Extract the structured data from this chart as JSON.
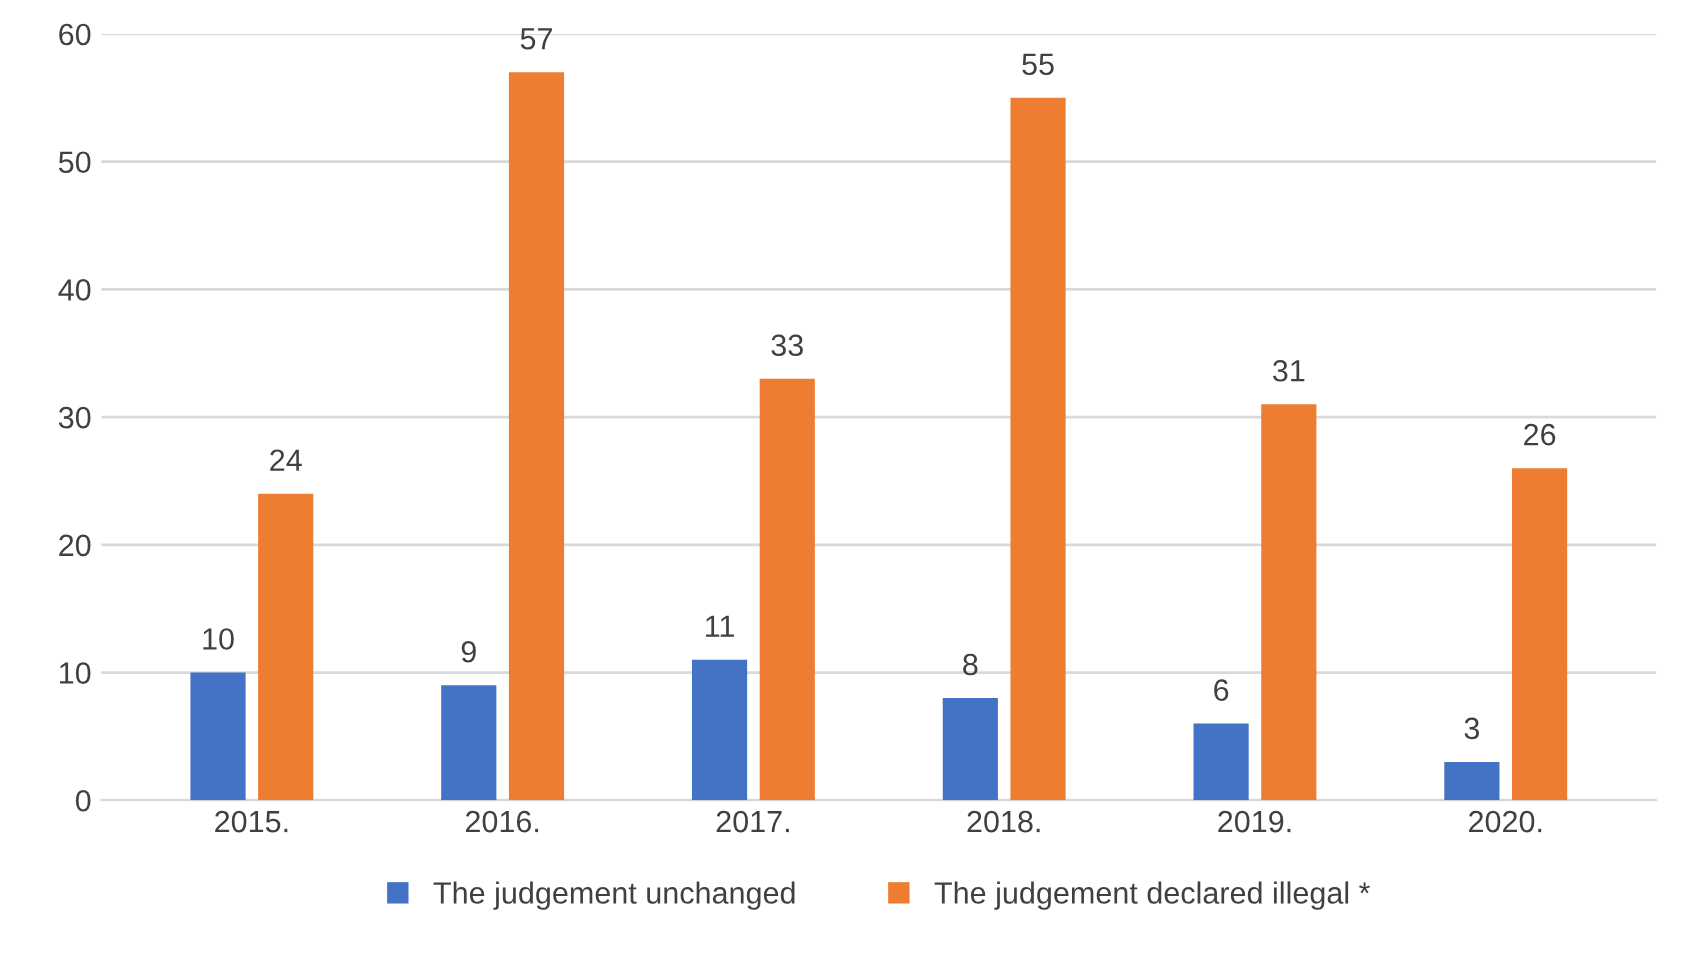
{
  "chart_data": {
    "type": "bar",
    "categories": [
      "2015.",
      "2016.",
      "2017.",
      "2018.",
      "2019.",
      "2020."
    ],
    "series": [
      {
        "name": "The judgement unchanged",
        "color": "#4472c4",
        "values": [
          10,
          9,
          11,
          8,
          6,
          3
        ]
      },
      {
        "name": "The judgement declared illegal *",
        "color": "#ed7d31",
        "values": [
          24,
          57,
          33,
          55,
          31,
          26
        ]
      }
    ],
    "ylim": [
      0,
      60
    ],
    "yticks": [
      0,
      10,
      20,
      30,
      40,
      50,
      60
    ],
    "grid": "y",
    "legend": "bottom",
    "data_labels": true
  }
}
